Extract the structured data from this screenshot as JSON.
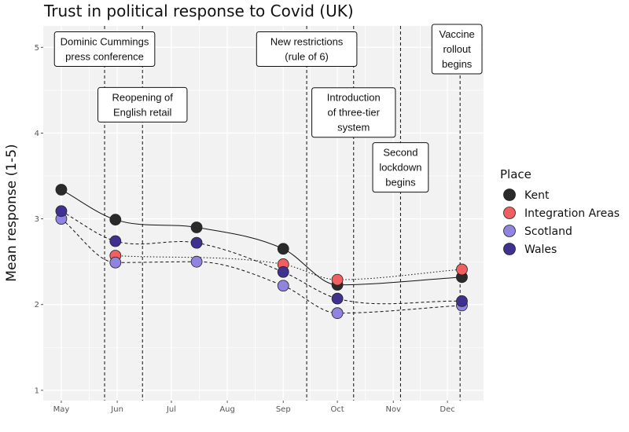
{
  "chart_data": {
    "type": "line",
    "title": "Trust in political response to Covid (UK)",
    "xlabel": "",
    "ylabel": "Mean response (1-5)",
    "x_ticks": [
      "May",
      "Jun",
      "Jul",
      "Aug",
      "Sep",
      "Oct",
      "Nov",
      "Dec"
    ],
    "x_tick_dates": [
      "2020-05-01",
      "2020-06-01",
      "2020-07-01",
      "2020-08-01",
      "2020-09-01",
      "2020-10-01",
      "2020-11-01",
      "2020-12-01"
    ],
    "x_range": [
      "2020-04-21",
      "2020-12-21"
    ],
    "y_ticks": [
      1,
      2,
      3,
      4,
      5
    ],
    "ylim": [
      0.88,
      5.25
    ],
    "grid": true,
    "legend": {
      "title": "Place",
      "position": "right"
    },
    "x": [
      "2020-05-01",
      "2020-05-31",
      "2020-07-15",
      "2020-09-01",
      "2020-10-01",
      "2020-12-09"
    ],
    "series": [
      {
        "name": "Kent",
        "color": "#2a2a2a",
        "line": "solid",
        "values": [
          3.34,
          2.99,
          2.9,
          2.65,
          2.23,
          2.32
        ]
      },
      {
        "name": "Integration Areas",
        "color": "#f06060",
        "line": "dotted",
        "values": [
          null,
          2.57,
          null,
          2.47,
          2.29,
          2.41
        ]
      },
      {
        "name": "Scotland",
        "color": "#8f84e0",
        "line": "dashed",
        "values": [
          3.0,
          2.49,
          2.5,
          2.22,
          1.9,
          1.99
        ]
      },
      {
        "name": "Wales",
        "color": "#3f3190",
        "line": "dashed",
        "values": [
          3.09,
          2.74,
          2.72,
          2.38,
          2.07,
          2.04
        ]
      }
    ],
    "events": [
      {
        "date": "2020-05-25",
        "label": [
          "Dominic Cummings",
          "press conference"
        ],
        "label_y": 4.98
      },
      {
        "date": "2020-06-15",
        "label": [
          "Reopening of",
          "English retail"
        ],
        "label_y": 4.33
      },
      {
        "date": "2020-09-14",
        "label": [
          "New restrictions",
          "(rule of 6)"
        ],
        "label_y": 4.98
      },
      {
        "date": "2020-10-10",
        "label": [
          "Introduction",
          "of three-tier",
          "system"
        ],
        "label_y": 4.24
      },
      {
        "date": "2020-11-05",
        "label": [
          "Second",
          "lockdown",
          "begins"
        ],
        "label_y": 3.6
      },
      {
        "date": "2020-12-08",
        "label": [
          "Vaccine",
          "rollout",
          "begins"
        ],
        "label_y": 4.98
      }
    ]
  }
}
